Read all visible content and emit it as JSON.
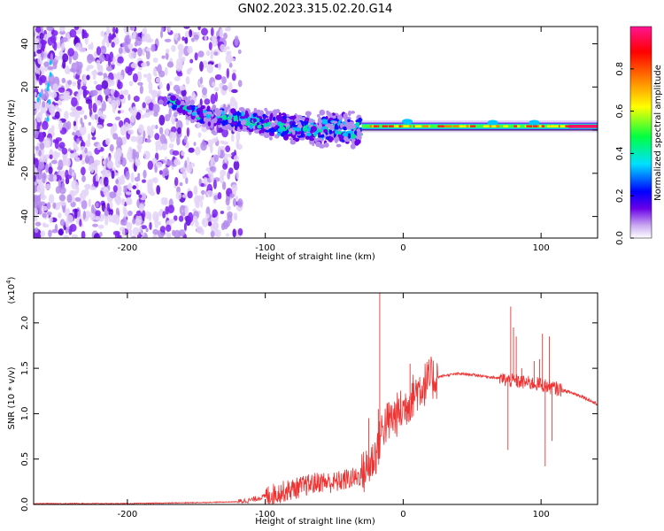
{
  "title": "GN02.2023.315.02.20.G14",
  "chart_data": [
    {
      "type": "heatmap",
      "xlabel": "Height of straight line (km)",
      "ylabel": "Frequency (Hz)",
      "xlim": [
        -268,
        141
      ],
      "ylim": [
        -50,
        48
      ],
      "xticks": [
        -200,
        -100,
        0,
        100
      ],
      "yticks": [
        -40,
        -20,
        0,
        20,
        40
      ],
      "colorbar": {
        "label": "Normalized spectral amplitude",
        "range": [
          0,
          1
        ],
        "ticks": [
          "0.0",
          "0.2",
          "0.4",
          "0.6",
          "0.8"
        ],
        "colors": [
          "#ffffff",
          "#c9a8f0",
          "#6a00e8",
          "#0000ff",
          "#00e0ff",
          "#00ff40",
          "#ffff00",
          "#ff8000",
          "#ff0000",
          "#ff1493"
        ]
      },
      "ridge": [
        [
          -170,
          14
        ],
        [
          -160,
          11
        ],
        [
          -150,
          8
        ],
        [
          -140,
          6
        ],
        [
          -130,
          6
        ],
        [
          -120,
          5
        ],
        [
          -110,
          4
        ],
        [
          -100,
          3
        ],
        [
          -90,
          2
        ],
        [
          -80,
          1
        ],
        [
          -70,
          1
        ],
        [
          -60,
          0
        ],
        [
          -50,
          1
        ],
        [
          -40,
          0
        ],
        [
          -30,
          1
        ],
        [
          -20,
          1
        ],
        [
          -10,
          1
        ],
        [
          0,
          2
        ],
        [
          10,
          2
        ],
        [
          20,
          2
        ],
        [
          40,
          2
        ],
        [
          60,
          2
        ],
        [
          80,
          2
        ],
        [
          100,
          2
        ],
        [
          120,
          2
        ],
        [
          141,
          2
        ]
      ]
    },
    {
      "type": "line",
      "xlabel": "Height of straight line (km)",
      "ylabel": "SNR (10 * v/v)",
      "yscale_label": "(x10",
      "yscale_exp": "4",
      "xlim": [
        -268,
        141
      ],
      "ylim": [
        0,
        2.33
      ],
      "xticks": [
        -200,
        -100,
        0,
        100
      ],
      "yticks": [
        "0.0",
        "0.5",
        "1.0",
        "1.5",
        "2.0"
      ],
      "color": "#ee3333",
      "series": [
        {
          "x": [
            -268,
            -250,
            -200,
            -150,
            -120,
            -110,
            -100,
            -90,
            -80,
            -70,
            -60,
            -50,
            -40,
            -35,
            -30,
            -25,
            -20,
            -17,
            -15,
            -10,
            -5,
            0,
            5,
            10,
            15,
            20,
            30,
            40,
            50,
            60,
            70,
            75,
            80,
            85,
            90,
            95,
            100,
            105,
            110,
            120,
            130,
            141
          ],
          "y": [
            0.01,
            0.01,
            0.01,
            0.02,
            0.03,
            0.05,
            0.09,
            0.13,
            0.17,
            0.21,
            0.25,
            0.24,
            0.28,
            0.29,
            0.33,
            0.42,
            0.55,
            0.7,
            0.85,
            0.92,
            0.98,
            1.05,
            1.15,
            1.26,
            1.32,
            1.38,
            1.42,
            1.44,
            1.43,
            1.41,
            1.39,
            1.37,
            1.36,
            1.35,
            1.34,
            1.33,
            1.32,
            1.3,
            1.28,
            1.24,
            1.19,
            1.1
          ]
        }
      ],
      "spikes": [
        [
          -17,
          2.33
        ],
        [
          -18,
          1.05
        ],
        [
          -25,
          0.95
        ],
        [
          5,
          1.55
        ],
        [
          15,
          1.38
        ],
        [
          22,
          1.32
        ],
        [
          78,
          2.18
        ],
        [
          80,
          1.95
        ],
        [
          82,
          1.85
        ],
        [
          76,
          0.6
        ],
        [
          86,
          1.5
        ],
        [
          95,
          1.58
        ],
        [
          99,
          1.6
        ],
        [
          101,
          1.88
        ],
        [
          103,
          0.42
        ],
        [
          106,
          1.85
        ],
        [
          108,
          0.7
        ]
      ]
    }
  ]
}
